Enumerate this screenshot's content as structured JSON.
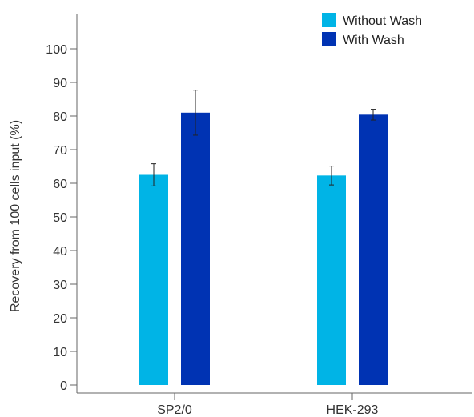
{
  "chart_data": {
    "type": "bar",
    "title": "",
    "xlabel": "",
    "ylabel": "Recovery from 100 cells input (%)",
    "categories": [
      "SP2/0",
      "HEK-293"
    ],
    "series": [
      {
        "name": "Without Wash",
        "color": "#00b4e6",
        "values": [
          62.5,
          62.3
        ],
        "errors": [
          3.3,
          2.8
        ]
      },
      {
        "name": "With Wash",
        "color": "#0033b3",
        "values": [
          81,
          80.4
        ],
        "errors": [
          6.7,
          1.6
        ]
      }
    ],
    "yticks": [
      0,
      10,
      20,
      30,
      40,
      50,
      60,
      70,
      80,
      90,
      100
    ],
    "ylim": [
      0,
      110
    ],
    "grid": false,
    "legend_position": "top-right"
  }
}
